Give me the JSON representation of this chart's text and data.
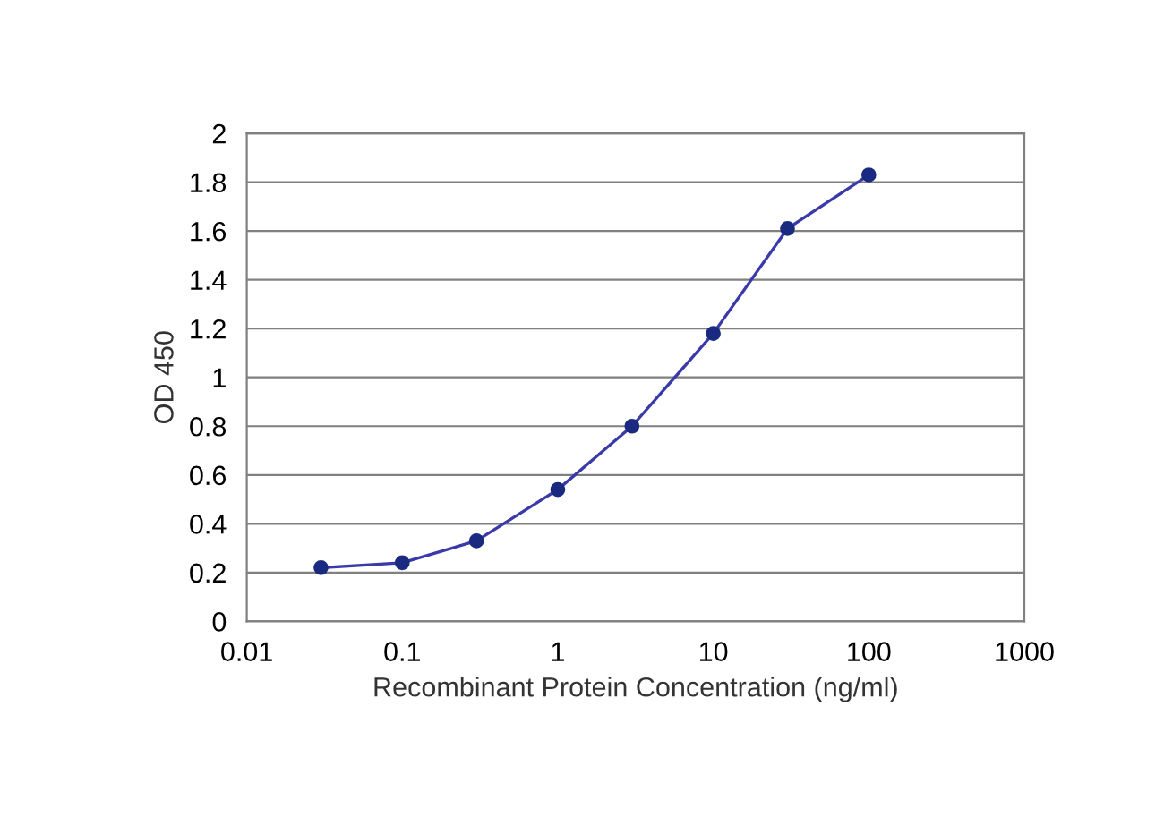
{
  "chart_data": {
    "type": "line",
    "xlabel": "Recombinant Protein Concentration (ng/ml)",
    "ylabel": "OD 450",
    "x": [
      0.03,
      0.1,
      0.3,
      1,
      3,
      10,
      30,
      100
    ],
    "series": [
      {
        "color": "#3a3aa8",
        "values": [
          0.22,
          0.24,
          0.33,
          0.54,
          0.8,
          1.18,
          1.61,
          1.83
        ]
      }
    ],
    "log": "x",
    "xlim": [
      0.01,
      1000
    ],
    "xticks": [
      0.01,
      0.1,
      1,
      10,
      100,
      1000
    ],
    "ylim": [
      0,
      2
    ],
    "yticks": [
      0,
      0.2,
      0.4,
      0.6,
      0.8,
      1,
      1.2,
      1.4,
      1.6,
      1.8,
      2
    ],
    "grid": "y",
    "marker": "circle",
    "line_style": "solid"
  }
}
